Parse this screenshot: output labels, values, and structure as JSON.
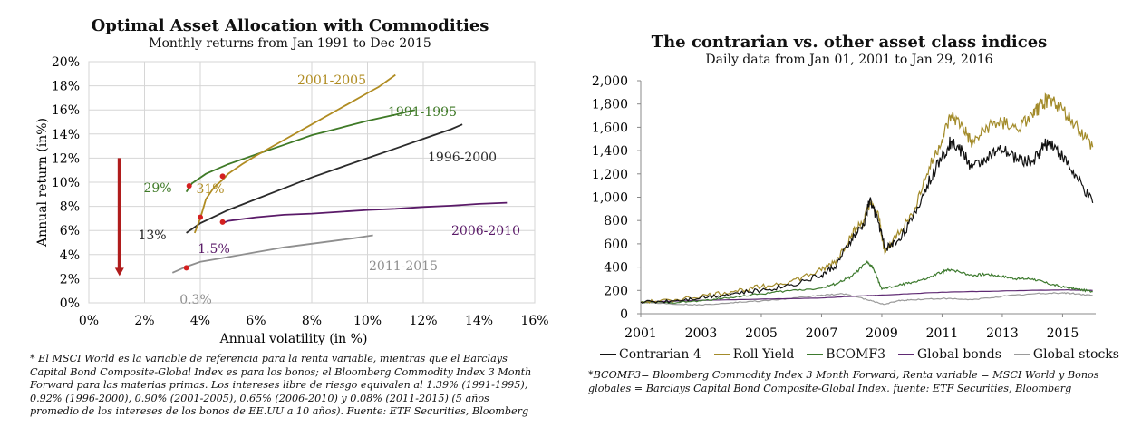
{
  "chart_data": [
    {
      "type": "line",
      "title": "Optimal Asset Allocation with Commodities",
      "subtitle": "Monthly returns from Jan 1991 to Dec 2015",
      "xlabel": "Annual volatility (in %)",
      "ylabel": "Annual return (in%)",
      "xlim": [
        0,
        16
      ],
      "ylim": [
        0,
        20
      ],
      "x_ticks": [
        "0%",
        "2%",
        "4%",
        "6%",
        "8%",
        "10%",
        "12%",
        "14%",
        "16%"
      ],
      "y_ticks": [
        "0%",
        "2%",
        "4%",
        "6%",
        "8%",
        "10%",
        "12%",
        "14%",
        "16%",
        "18%",
        "20%"
      ],
      "series": [
        {
          "name": "1991-1995",
          "color": "#3f7a27",
          "x": [
            3.5,
            3.7,
            4.2,
            5.0,
            6.0,
            7.0,
            8.0,
            9.0,
            10.0,
            11.0,
            11.7
          ],
          "y": [
            9.2,
            9.9,
            10.7,
            11.5,
            12.3,
            13.1,
            13.9,
            14.5,
            15.1,
            15.6,
            16.0
          ],
          "min_point": [
            3.6,
            9.7
          ],
          "min_label": "29%"
        },
        {
          "name": "1996-2000",
          "color": "#2a2a2a",
          "x": [
            3.5,
            4.0,
            5.0,
            6.0,
            7.0,
            8.0,
            9.0,
            10.0,
            11.0,
            12.0,
            13.0,
            13.4
          ],
          "y": [
            5.8,
            6.6,
            7.7,
            8.6,
            9.5,
            10.4,
            11.2,
            12.0,
            12.8,
            13.6,
            14.4,
            14.8
          ],
          "min_point": null,
          "min_label": "13%"
        },
        {
          "name": "2001-2005",
          "color": "#b08c22",
          "x": [
            3.8,
            4.0,
            4.2,
            4.5,
            4.8,
            5.0,
            5.5,
            6.0,
            7.0,
            8.0,
            9.0,
            10.0,
            10.4,
            11.0
          ],
          "y": [
            5.8,
            7.0,
            8.6,
            9.6,
            10.2,
            10.7,
            11.5,
            12.2,
            13.5,
            14.8,
            16.1,
            17.4,
            17.9,
            18.9
          ],
          "min_point": [
            4.8,
            10.5
          ],
          "min_label": "31%"
        },
        {
          "name": "2006-2010",
          "color": "#5a1a68",
          "x": [
            4.8,
            5.0,
            6.0,
            7.0,
            8.0,
            9.0,
            10.0,
            11.0,
            12.0,
            13.0,
            14.0,
            15.0
          ],
          "y": [
            6.6,
            6.8,
            7.1,
            7.3,
            7.4,
            7.55,
            7.7,
            7.8,
            7.95,
            8.05,
            8.2,
            8.3
          ],
          "min_point": [
            4.8,
            6.7
          ],
          "min_label": "1.5%"
        },
        {
          "name": "2011-2015",
          "color": "#8f8f8f",
          "x": [
            3.0,
            3.5,
            4.0,
            4.5,
            5.0,
            6.0,
            6.5,
            7.0,
            8.0,
            9.0,
            9.5,
            10.2
          ],
          "y": [
            2.5,
            3.0,
            3.4,
            3.6,
            3.8,
            4.2,
            4.4,
            4.6,
            4.9,
            5.2,
            5.35,
            5.6
          ],
          "min_point": [
            3.5,
            2.9
          ],
          "min_label": "0.3%"
        }
      ],
      "extra_point": {
        "x": 4.0,
        "y": 7.1,
        "color": "#d42020"
      },
      "arrow": {
        "x": 1.1,
        "y_from": 12.0,
        "y_to": 2.3,
        "color": "#b01c1c"
      },
      "footnote": "* El MSCI World es la variable de referencia para la renta variable, mientras que el Barclays Capital Bond Composite-Global Index es para los bonos; el Bloomberg Commodity Index 3 Month Forward para las materias primas. Los intereses libre de riesgo equivalen al 1.39% (1991-1995), 0.92% (1996-2000), 0.90% (2001-2005), 0.65% (2006-2010) y 0.08% (2011-2015) (5 años promedio de los intereses de los bonos de EE.UU a 10 años). Fuente: ETF Securities, Bloomberg"
    },
    {
      "type": "line",
      "title": "The contrarian vs. other asset class indices",
      "subtitle": "Daily data from Jan 01, 2001 to Jan 29, 2016",
      "xlabel": "",
      "ylabel": "",
      "xlim": [
        2001,
        2016.1
      ],
      "ylim": [
        0,
        2000
      ],
      "x_ticks": [
        "2001",
        "2003",
        "2005",
        "2007",
        "2009",
        "2011",
        "2013",
        "2015"
      ],
      "y_ticks": [
        "0",
        "200",
        "400",
        "600",
        "800",
        "1,000",
        "1,200",
        "1,400",
        "1,600",
        "1,800",
        "2,000"
      ],
      "series": [
        {
          "name": "Contrarian 4",
          "color": "#111111",
          "x": [
            2001,
            2002,
            2003,
            2004,
            2005,
            2006,
            2007,
            2007.5,
            2008,
            2008.4,
            2008.6,
            2008.9,
            2009.1,
            2009.5,
            2010,
            2010.5,
            2011,
            2011.3,
            2011.7,
            2012,
            2012.5,
            2013,
            2013.5,
            2014,
            2014.3,
            2014.6,
            2015,
            2015.5,
            2016
          ],
          "y": [
            100,
            110,
            140,
            170,
            200,
            250,
            330,
            420,
            640,
            760,
            980,
            780,
            560,
            620,
            800,
            1100,
            1350,
            1480,
            1380,
            1250,
            1350,
            1400,
            1330,
            1300,
            1420,
            1480,
            1350,
            1150,
            950
          ]
        },
        {
          "name": "Roll Yield",
          "color": "#a38b2a",
          "x": [
            2001,
            2002,
            2003,
            2004,
            2005,
            2006,
            2007,
            2007.5,
            2008,
            2008.4,
            2008.6,
            2008.9,
            2009.1,
            2009.5,
            2010,
            2010.5,
            2011,
            2011.3,
            2011.7,
            2012,
            2012.5,
            2013,
            2013.5,
            2014,
            2014.3,
            2014.6,
            2015,
            2015.5,
            2016
          ],
          "y": [
            100,
            115,
            150,
            190,
            230,
            280,
            370,
            460,
            680,
            800,
            950,
            830,
            520,
            680,
            850,
            1200,
            1500,
            1700,
            1600,
            1450,
            1600,
            1650,
            1580,
            1700,
            1800,
            1850,
            1750,
            1600,
            1430
          ]
        },
        {
          "name": "BCOMF3",
          "color": "#3d7a2e",
          "x": [
            2001,
            2002,
            2003,
            2004,
            2005,
            2006,
            2007,
            2007.5,
            2008,
            2008.5,
            2008.7,
            2009,
            2009.5,
            2010,
            2010.5,
            2011,
            2011.3,
            2012,
            2012.5,
            2013,
            2013.5,
            2014,
            2014.5,
            2015,
            2015.5,
            2016
          ],
          "y": [
            100,
            95,
            110,
            140,
            170,
            200,
            220,
            260,
            320,
            440,
            400,
            210,
            240,
            270,
            300,
            360,
            380,
            330,
            340,
            320,
            300,
            300,
            260,
            230,
            210,
            190
          ]
        },
        {
          "name": "Global bonds",
          "color": "#5f2a73",
          "x": [
            2001,
            2003,
            2005,
            2007,
            2008.5,
            2009,
            2011,
            2013,
            2015,
            2016
          ],
          "y": [
            100,
            115,
            125,
            135,
            155,
            160,
            185,
            195,
            205,
            200
          ]
        },
        {
          "name": "Global stocks",
          "color": "#9a9a9a",
          "x": [
            2001,
            2002,
            2003,
            2004,
            2005,
            2006,
            2007,
            2007.8,
            2008.5,
            2009.1,
            2009.5,
            2010,
            2011,
            2012,
            2013,
            2014,
            2015,
            2015.5,
            2016
          ],
          "y": [
            100,
            85,
            75,
            95,
            110,
            130,
            160,
            170,
            120,
            80,
            110,
            120,
            130,
            120,
            150,
            170,
            180,
            170,
            155
          ]
        }
      ],
      "legend": [
        "Contrarian 4",
        "Roll Yield",
        "BCOMF3",
        "Global bonds",
        "Global stocks"
      ],
      "footnote": "*BCOMF3= Bloomberg Commodity Index 3 Month Forward, Renta variable = MSCI World y Bonos globales = Barclays Capital Bond Composite-Global Index. fuente: ETF Securities, Bloomberg"
    }
  ]
}
